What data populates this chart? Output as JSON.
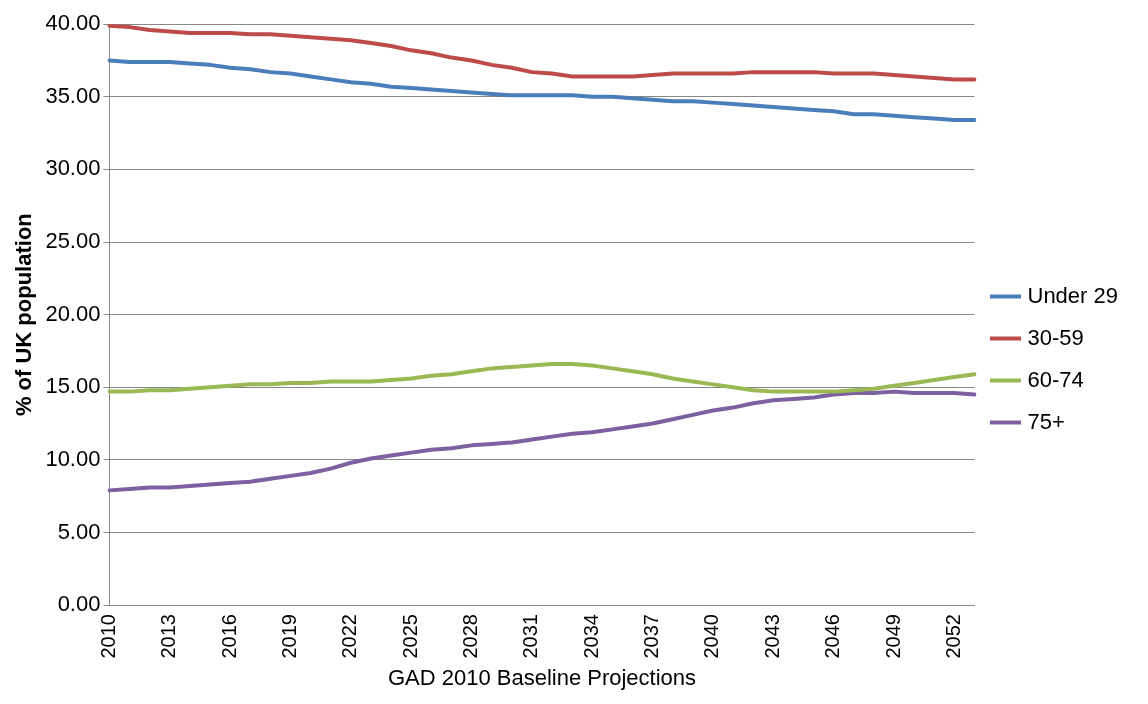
{
  "chart_data": {
    "type": "line",
    "xlabel": "GAD 2010 Baseline Projections",
    "ylabel": "% of UK population",
    "categories": [
      "2010",
      null,
      null,
      "2013",
      null,
      null,
      "2016",
      null,
      null,
      "2019",
      null,
      null,
      "2022",
      null,
      null,
      "2025",
      null,
      null,
      "2028",
      null,
      null,
      "2031",
      null,
      null,
      "2034",
      null,
      null,
      "2037",
      null,
      null,
      "2040",
      null,
      null,
      "2043",
      null,
      null,
      "2046",
      null,
      null,
      "2049",
      null,
      null,
      "2052",
      null
    ],
    "series": [
      {
        "name": "Under 29",
        "color": "#4a7ebb",
        "values": [
          37.5,
          37.4,
          37.4,
          37.4,
          37.3,
          37.2,
          37.0,
          36.9,
          36.7,
          36.6,
          36.4,
          36.2,
          36.0,
          35.9,
          35.7,
          35.6,
          35.5,
          35.4,
          35.3,
          35.2,
          35.1,
          35.1,
          35.1,
          35.1,
          35.0,
          35.0,
          34.9,
          34.8,
          34.7,
          34.7,
          34.6,
          34.5,
          34.4,
          34.3,
          34.2,
          34.1,
          34.0,
          33.8,
          33.8,
          33.7,
          33.6,
          33.5,
          33.4,
          33.4
        ]
      },
      {
        "name": "30-59",
        "color": "#be4b48",
        "values": [
          39.9,
          39.8,
          39.6,
          39.5,
          39.4,
          39.4,
          39.4,
          39.3,
          39.3,
          39.2,
          39.1,
          39.0,
          38.9,
          38.7,
          38.5,
          38.2,
          38.0,
          37.7,
          37.5,
          37.2,
          37.0,
          36.7,
          36.6,
          36.4,
          36.4,
          36.4,
          36.4,
          36.5,
          36.6,
          36.6,
          36.6,
          36.6,
          36.7,
          36.7,
          36.7,
          36.7,
          36.6,
          36.6,
          36.6,
          36.5,
          36.4,
          36.3,
          36.2,
          36.2
        ]
      },
      {
        "name": "60-74",
        "color": "#98b954",
        "values": [
          14.7,
          14.7,
          14.8,
          14.8,
          14.9,
          15.0,
          15.1,
          15.2,
          15.2,
          15.3,
          15.3,
          15.4,
          15.4,
          15.4,
          15.5,
          15.6,
          15.8,
          15.9,
          16.1,
          16.3,
          16.4,
          16.5,
          16.6,
          16.6,
          16.5,
          16.3,
          16.1,
          15.9,
          15.6,
          15.4,
          15.2,
          15.0,
          14.8,
          14.7,
          14.7,
          14.7,
          14.7,
          14.8,
          14.9,
          15.1,
          15.3,
          15.5,
          15.7,
          15.9
        ]
      },
      {
        "name": "75+",
        "color": "#7d60a0",
        "values": [
          7.9,
          8.0,
          8.1,
          8.1,
          8.2,
          8.3,
          8.4,
          8.5,
          8.7,
          8.9,
          9.1,
          9.4,
          9.8,
          10.1,
          10.3,
          10.5,
          10.7,
          10.8,
          11.0,
          11.1,
          11.2,
          11.4,
          11.6,
          11.8,
          11.9,
          12.1,
          12.3,
          12.5,
          12.8,
          13.1,
          13.4,
          13.6,
          13.9,
          14.1,
          14.2,
          14.3,
          14.5,
          14.6,
          14.6,
          14.7,
          14.6,
          14.6,
          14.6,
          14.5
        ]
      }
    ],
    "ylim": [
      0,
      40
    ],
    "yticks": [
      {
        "value": 0,
        "label": "0.00"
      },
      {
        "value": 5,
        "label": "5.00"
      },
      {
        "value": 10,
        "label": "10.00"
      },
      {
        "value": 15,
        "label": "15.00"
      },
      {
        "value": 20,
        "label": "20.00"
      },
      {
        "value": 25,
        "label": "25.00"
      },
      {
        "value": 30,
        "label": "30.00"
      },
      {
        "value": 35,
        "label": "35.00"
      },
      {
        "value": 40,
        "label": "40.00"
      }
    ],
    "grid": "y",
    "legend": "right",
    "marker": "none",
    "line_style": "solid"
  }
}
